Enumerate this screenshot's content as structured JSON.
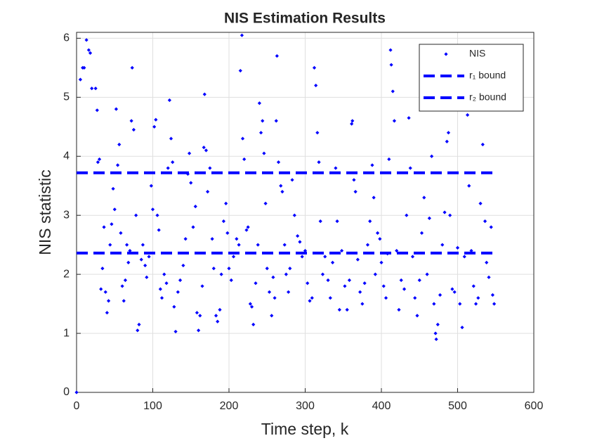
{
  "chart_data": {
    "type": "scatter",
    "title": "NIS Estimation Results",
    "xlabel": "Time step, k",
    "ylabel": "NIS statistic",
    "xlim": [
      0,
      600
    ],
    "ylim": [
      0,
      6.1
    ],
    "xticks": [
      0,
      100,
      200,
      300,
      400,
      500,
      600
    ],
    "yticks": [
      0,
      1,
      2,
      3,
      4,
      5,
      6
    ],
    "grid": true,
    "legend": "top-right",
    "series": [
      {
        "name": "NIS",
        "type": "scatter",
        "color": "#0000ff",
        "x": [
          0,
          5,
          8,
          10,
          13,
          16,
          18,
          20,
          25,
          27,
          28,
          30,
          32,
          34,
          36,
          38,
          40,
          42,
          44,
          46,
          48,
          50,
          52,
          54,
          56,
          58,
          60,
          62,
          64,
          66,
          68,
          70,
          72,
          73,
          75,
          78,
          80,
          82,
          85,
          87,
          90,
          92,
          95,
          98,
          100,
          102,
          104,
          106,
          108,
          110,
          112,
          115,
          118,
          120,
          122,
          124,
          126,
          128,
          130,
          133,
          136,
          140,
          143,
          146,
          148,
          150,
          153,
          156,
          158,
          160,
          162,
          165,
          167,
          168,
          170,
          172,
          175,
          178,
          180,
          183,
          185,
          188,
          190,
          193,
          196,
          198,
          200,
          203,
          206,
          210,
          213,
          215,
          217,
          218,
          220,
          223,
          225,
          228,
          230,
          232,
          235,
          238,
          240,
          242,
          244,
          246,
          248,
          250,
          253,
          256,
          258,
          260,
          262,
          263,
          265,
          268,
          270,
          273,
          275,
          278,
          280,
          283,
          286,
          290,
          293,
          296,
          300,
          303,
          306,
          309,
          312,
          314,
          316,
          318,
          320,
          323,
          326,
          330,
          333,
          336,
          340,
          342,
          345,
          348,
          352,
          355,
          358,
          361,
          362,
          364,
          366,
          369,
          372,
          375,
          378,
          382,
          385,
          388,
          390,
          392,
          395,
          398,
          400,
          403,
          406,
          408,
          410,
          412,
          413,
          415,
          417,
          420,
          423,
          426,
          430,
          433,
          436,
          438,
          441,
          444,
          447,
          450,
          453,
          456,
          460,
          463,
          466,
          469,
          471,
          472,
          474,
          477,
          480,
          483,
          486,
          488,
          490,
          493,
          496,
          500,
          503,
          506,
          509,
          512,
          513,
          515,
          518,
          521,
          524,
          527,
          530,
          532,
          533,
          536,
          538,
          541,
          544,
          546,
          548
        ],
        "values": [
          0,
          5.3,
          5.5,
          5.5,
          5.97,
          5.8,
          5.75,
          5.15,
          5.15,
          4.78,
          3.9,
          3.95,
          1.75,
          2.1,
          2.8,
          1.7,
          1.35,
          1.55,
          2.5,
          2.85,
          3.45,
          3.1,
          4.8,
          3.85,
          4.2,
          2.7,
          1.8,
          1.55,
          1.9,
          2.5,
          2.2,
          2.4,
          4.6,
          5.5,
          4.45,
          3.0,
          1.05,
          1.15,
          2.25,
          2.5,
          2.15,
          1.95,
          2.3,
          3.5,
          3.1,
          4.5,
          4.62,
          3.0,
          2.75,
          1.75,
          1.6,
          2.0,
          1.85,
          3.8,
          4.95,
          4.3,
          3.9,
          1.45,
          1.03,
          1.7,
          1.9,
          2.15,
          2.6,
          3.7,
          4.05,
          3.55,
          2.8,
          3.15,
          1.35,
          1.05,
          1.3,
          1.8,
          4.15,
          5.05,
          4.1,
          3.4,
          3.8,
          2.6,
          2.1,
          1.3,
          1.2,
          1.4,
          2.0,
          2.9,
          3.2,
          2.7,
          2.1,
          1.9,
          2.3,
          2.6,
          2.5,
          5.45,
          6.05,
          4.3,
          3.95,
          2.75,
          2.8,
          1.5,
          1.45,
          1.15,
          1.85,
          2.5,
          4.9,
          4.4,
          4.6,
          4.05,
          3.2,
          2.1,
          1.7,
          1.3,
          1.95,
          1.6,
          4.6,
          5.7,
          3.9,
          3.5,
          3.4,
          2.5,
          2.0,
          1.7,
          2.1,
          3.6,
          3.0,
          2.65,
          2.55,
          2.3,
          2.4,
          1.85,
          1.55,
          1.6,
          5.5,
          5.2,
          4.4,
          3.9,
          2.9,
          2.0,
          2.3,
          1.9,
          1.6,
          2.2,
          3.8,
          2.9,
          1.4,
          2.4,
          1.8,
          1.4,
          1.9,
          4.55,
          4.6,
          3.6,
          3.4,
          2.25,
          1.7,
          1.5,
          1.85,
          2.5,
          2.9,
          3.85,
          3.3,
          2.0,
          2.7,
          2.6,
          2.2,
          1.8,
          1.6,
          2.35,
          3.95,
          5.8,
          5.55,
          5.1,
          4.6,
          2.4,
          1.4,
          1.9,
          1.75,
          3.0,
          4.65,
          3.8,
          2.3,
          1.6,
          1.3,
          1.9,
          2.7,
          3.3,
          2.0,
          2.95,
          4.0,
          1.5,
          1.0,
          0.9,
          1.15,
          1.65,
          2.5,
          3.05,
          4.25,
          4.4,
          3.0,
          1.75,
          1.7,
          2.45,
          1.5,
          1.1,
          2.3,
          5.05,
          4.7,
          3.5,
          2.4,
          1.8,
          1.5,
          1.6,
          3.2,
          4.8,
          4.2,
          2.9,
          2.2,
          1.95,
          2.8,
          1.65,
          1.5
        ]
      },
      {
        "name": "r₁ bound",
        "type": "line",
        "color": "#0000ff",
        "x": [
          0,
          550
        ],
        "values": [
          2.36,
          2.36
        ]
      },
      {
        "name": "r₂ bound",
        "type": "line",
        "color": "#0000ff",
        "x": [
          0,
          550
        ],
        "values": [
          3.72,
          3.72
        ]
      }
    ]
  }
}
